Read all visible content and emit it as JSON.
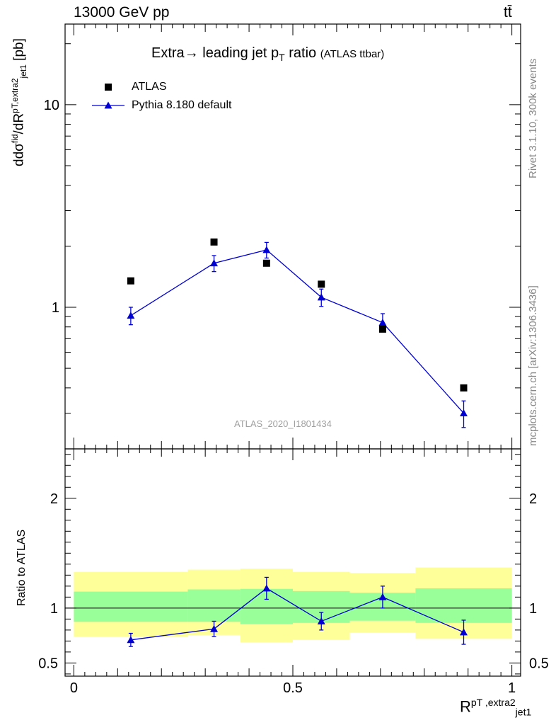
{
  "header": {
    "left": "13000 GeV pp",
    "right": "tt̄"
  },
  "side_labels": {
    "top": "Rivet 3.1.10,  300k events",
    "bottom": "mcplots.cern.ch [arXiv:1306.3436]"
  },
  "chart_data": [
    {
      "type": "scatter",
      "title": "Extra → leading jet p_T ratio",
      "title_parts": {
        "pre": "Extra",
        "arrow": "→",
        "mid": "leading jet p",
        "sub": "T",
        "post": "ratio",
        "small": "(ATLAS ttbar)"
      },
      "ylabel": "dσ^fid / dR^pT,extra2_jet1 [pb]",
      "ylabel_parts": {
        "d": "d",
        "sigma": "dσ",
        "fid": "fid",
        "R": "dR",
        "sup": "p",
        "sub": "T",
        "extra": "extra2",
        "jet": "jet1",
        "unit": "[pb]"
      },
      "yscale": "log",
      "ylim": [
        0.2,
        25
      ],
      "xlim": [
        -0.02,
        1.02
      ],
      "y_ticks": [
        {
          "value": 1,
          "label": "1"
        },
        {
          "value": 10,
          "label": "10"
        }
      ],
      "analysis_label": "ATLAS_2020_I1801434",
      "legend_position": "top-left",
      "legend": [
        {
          "name": "ATLAS",
          "marker": "square",
          "color": "#000000"
        },
        {
          "name": "Pythia 8.180 default",
          "marker": "triangle",
          "color": "#0000d4"
        }
      ],
      "series": [
        {
          "name": "ATLAS",
          "x": [
            0.13,
            0.32,
            0.44,
            0.565,
            0.705,
            0.89
          ],
          "y": [
            1.35,
            2.1,
            1.65,
            1.3,
            0.78,
            0.4
          ]
        },
        {
          "name": "Pythia 8.180 default",
          "x": [
            0.13,
            0.32,
            0.44,
            0.565,
            0.705,
            0.89
          ],
          "y": [
            0.91,
            1.65,
            1.92,
            1.12,
            0.84,
            0.3
          ],
          "err_low": [
            0.09,
            0.15,
            0.17,
            0.11,
            0.08,
            0.045
          ],
          "err_high": [
            0.09,
            0.15,
            0.17,
            0.11,
            0.09,
            0.045
          ]
        }
      ]
    },
    {
      "type": "line",
      "ylabel": "Ratio to ATLAS",
      "xlabel": "R^pT,extra2_jet1",
      "xlabel_parts": {
        "R": "R",
        "sup": "pT ,extra2",
        "sub": "jet1"
      },
      "ylim": [
        0.38,
        2.45
      ],
      "xlim": [
        -0.02,
        1.02
      ],
      "y_ticks": [
        {
          "value": 0.5,
          "label": "0.5"
        },
        {
          "value": 1,
          "label": "1"
        },
        {
          "value": 2,
          "label": "2"
        }
      ],
      "x_ticks": [
        {
          "value": 0,
          "label": "0"
        },
        {
          "value": 0.5,
          "label": "0.5"
        },
        {
          "value": 1,
          "label": "1"
        }
      ],
      "bins": [
        {
          "lo": 0.0,
          "hi": 0.26,
          "green": [
            0.875,
            1.15
          ],
          "yellow": [
            0.74,
            1.33
          ]
        },
        {
          "lo": 0.26,
          "hi": 0.38,
          "green": [
            0.875,
            1.17
          ],
          "yellow": [
            0.755,
            1.35
          ]
        },
        {
          "lo": 0.38,
          "hi": 0.5,
          "green": [
            0.855,
            1.175
          ],
          "yellow": [
            0.69,
            1.36
          ]
        },
        {
          "lo": 0.5,
          "hi": 0.63,
          "green": [
            0.865,
            1.155
          ],
          "yellow": [
            0.71,
            1.33
          ]
        },
        {
          "lo": 0.63,
          "hi": 0.78,
          "green": [
            0.885,
            1.14
          ],
          "yellow": [
            0.775,
            1.32
          ]
        },
        {
          "lo": 0.78,
          "hi": 1.0,
          "green": [
            0.865,
            1.18
          ],
          "yellow": [
            0.72,
            1.37
          ]
        }
      ],
      "series": [
        {
          "name": "Pythia 8.180 default",
          "x": [
            0.13,
            0.32,
            0.44,
            0.565,
            0.705,
            0.89
          ],
          "y": [
            0.71,
            0.81,
            1.18,
            0.88,
            1.1,
            0.78
          ],
          "err_low": [
            0.06,
            0.07,
            0.1,
            0.08,
            0.1,
            0.11
          ],
          "err_high": [
            0.06,
            0.07,
            0.1,
            0.08,
            0.1,
            0.11
          ]
        }
      ]
    }
  ]
}
